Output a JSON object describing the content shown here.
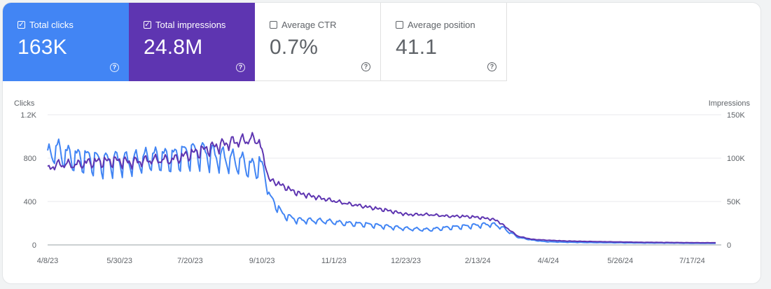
{
  "metrics": [
    {
      "label": "Total clicks",
      "value": "163K",
      "checked": true,
      "color": "#4285f4"
    },
    {
      "label": "Total impressions",
      "value": "24.8M",
      "checked": true,
      "color": "#5e35b1"
    },
    {
      "label": "Average CTR",
      "value": "0.7%",
      "checked": false,
      "color": "#ffffff"
    },
    {
      "label": "Average position",
      "value": "41.1",
      "checked": false,
      "color": "#ffffff"
    }
  ],
  "help_icon": "help-circle-icon",
  "checkbox_checked_glyph": "✓",
  "help_glyph": "?",
  "chart_data": {
    "type": "line",
    "ylabel_left": "Clicks",
    "ylabel_right": "Impressions",
    "yticks_left": [
      "1.2K",
      "800",
      "400",
      "0"
    ],
    "yticks_right": [
      "150K",
      "100K",
      "50K",
      "0"
    ],
    "ylim_left": [
      0,
      1200
    ],
    "ylim_right": [
      0,
      150000
    ],
    "xlabels": [
      "4/8/23",
      "5/30/23",
      "7/20/23",
      "9/10/23",
      "11/1/23",
      "12/23/23",
      "2/13/24",
      "4/4/24",
      "5/26/24",
      "7/17/24"
    ],
    "xdomain_days": [
      0,
      483
    ],
    "xlabel_days": [
      0,
      52,
      103,
      155,
      207,
      259,
      311,
      362,
      414,
      466
    ],
    "series": [
      {
        "name": "Clicks",
        "axis": "left",
        "color": "#4285f4",
        "key_days": [
          0,
          5,
          12,
          20,
          30,
          40,
          50,
          60,
          75,
          90,
          100,
          110,
          120,
          132,
          140,
          150,
          153,
          155,
          158,
          160,
          165,
          170,
          180,
          200,
          215,
          230,
          245,
          260,
          275,
          290,
          300,
          310,
          320,
          325,
          330,
          340,
          350,
          360,
          375,
          390,
          410,
          430,
          450,
          470,
          483
        ],
        "key_values": [
          800,
          880,
          830,
          800,
          790,
          760,
          770,
          760,
          800,
          800,
          840,
          850,
          820,
          780,
          760,
          700,
          750,
          700,
          620,
          450,
          370,
          280,
          230,
          220,
          200,
          190,
          170,
          150,
          140,
          160,
          170,
          180,
          190,
          180,
          150,
          70,
          45,
          30,
          25,
          22,
          20,
          18,
          17,
          15,
          15
        ]
      },
      {
        "name": "Impressions",
        "axis": "right",
        "color": "#5e35b1",
        "key_days": [
          0,
          5,
          12,
          20,
          30,
          40,
          50,
          60,
          75,
          90,
          100,
          110,
          120,
          132,
          140,
          150,
          153,
          155,
          158,
          160,
          165,
          170,
          180,
          200,
          215,
          230,
          245,
          260,
          275,
          290,
          300,
          310,
          320,
          325,
          330,
          340,
          350,
          360,
          375,
          390,
          410,
          430,
          450,
          470,
          483
        ],
        "key_values": [
          86000,
          92000,
          93000,
          92000,
          95000,
          96000,
          97000,
          95000,
          98000,
          98000,
          103000,
          108000,
          113000,
          118000,
          120000,
          122000,
          120000,
          105000,
          90000,
          75000,
          72000,
          68000,
          60000,
          53000,
          48000,
          44000,
          40000,
          35000,
          35000,
          33000,
          33000,
          32000,
          30000,
          28000,
          22000,
          10000,
          6500,
          5500,
          4500,
          4000,
          3500,
          3000,
          2800,
          2500,
          2500
        ]
      }
    ]
  }
}
